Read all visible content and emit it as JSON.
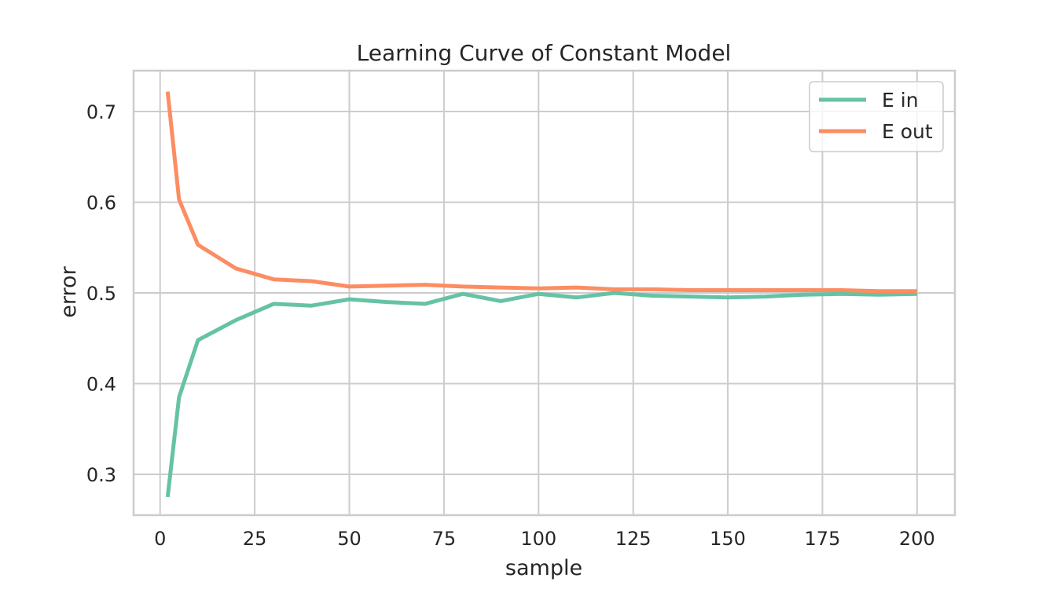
{
  "chart_data": {
    "type": "line",
    "title": "Learning Curve of Constant Model",
    "xlabel": "sample",
    "ylabel": "error",
    "xlim": [
      -7,
      210
    ],
    "ylim": [
      0.255,
      0.745
    ],
    "xticks": [
      0,
      25,
      50,
      75,
      100,
      125,
      150,
      175,
      200
    ],
    "yticks": [
      0.3,
      0.4,
      0.5,
      0.6,
      0.7
    ],
    "grid": true,
    "legend_position": "top-right",
    "x": [
      2,
      5,
      10,
      20,
      30,
      40,
      50,
      60,
      70,
      80,
      90,
      100,
      110,
      120,
      130,
      140,
      150,
      160,
      170,
      180,
      190,
      200
    ],
    "series": [
      {
        "name": "E in",
        "color": "#66c2a5",
        "values": [
          0.275,
          0.385,
          0.448,
          0.47,
          0.488,
          0.486,
          0.493,
          0.49,
          0.488,
          0.499,
          0.491,
          0.499,
          0.495,
          0.5,
          0.497,
          0.496,
          0.495,
          0.496,
          0.498,
          0.499,
          0.498,
          0.499
        ]
      },
      {
        "name": "E out",
        "color": "#fc8d62",
        "values": [
          0.722,
          0.603,
          0.553,
          0.527,
          0.515,
          0.513,
          0.507,
          0.508,
          0.509,
          0.507,
          0.506,
          0.505,
          0.506,
          0.504,
          0.504,
          0.503,
          0.503,
          0.503,
          0.503,
          0.503,
          0.502,
          0.502
        ]
      }
    ]
  }
}
